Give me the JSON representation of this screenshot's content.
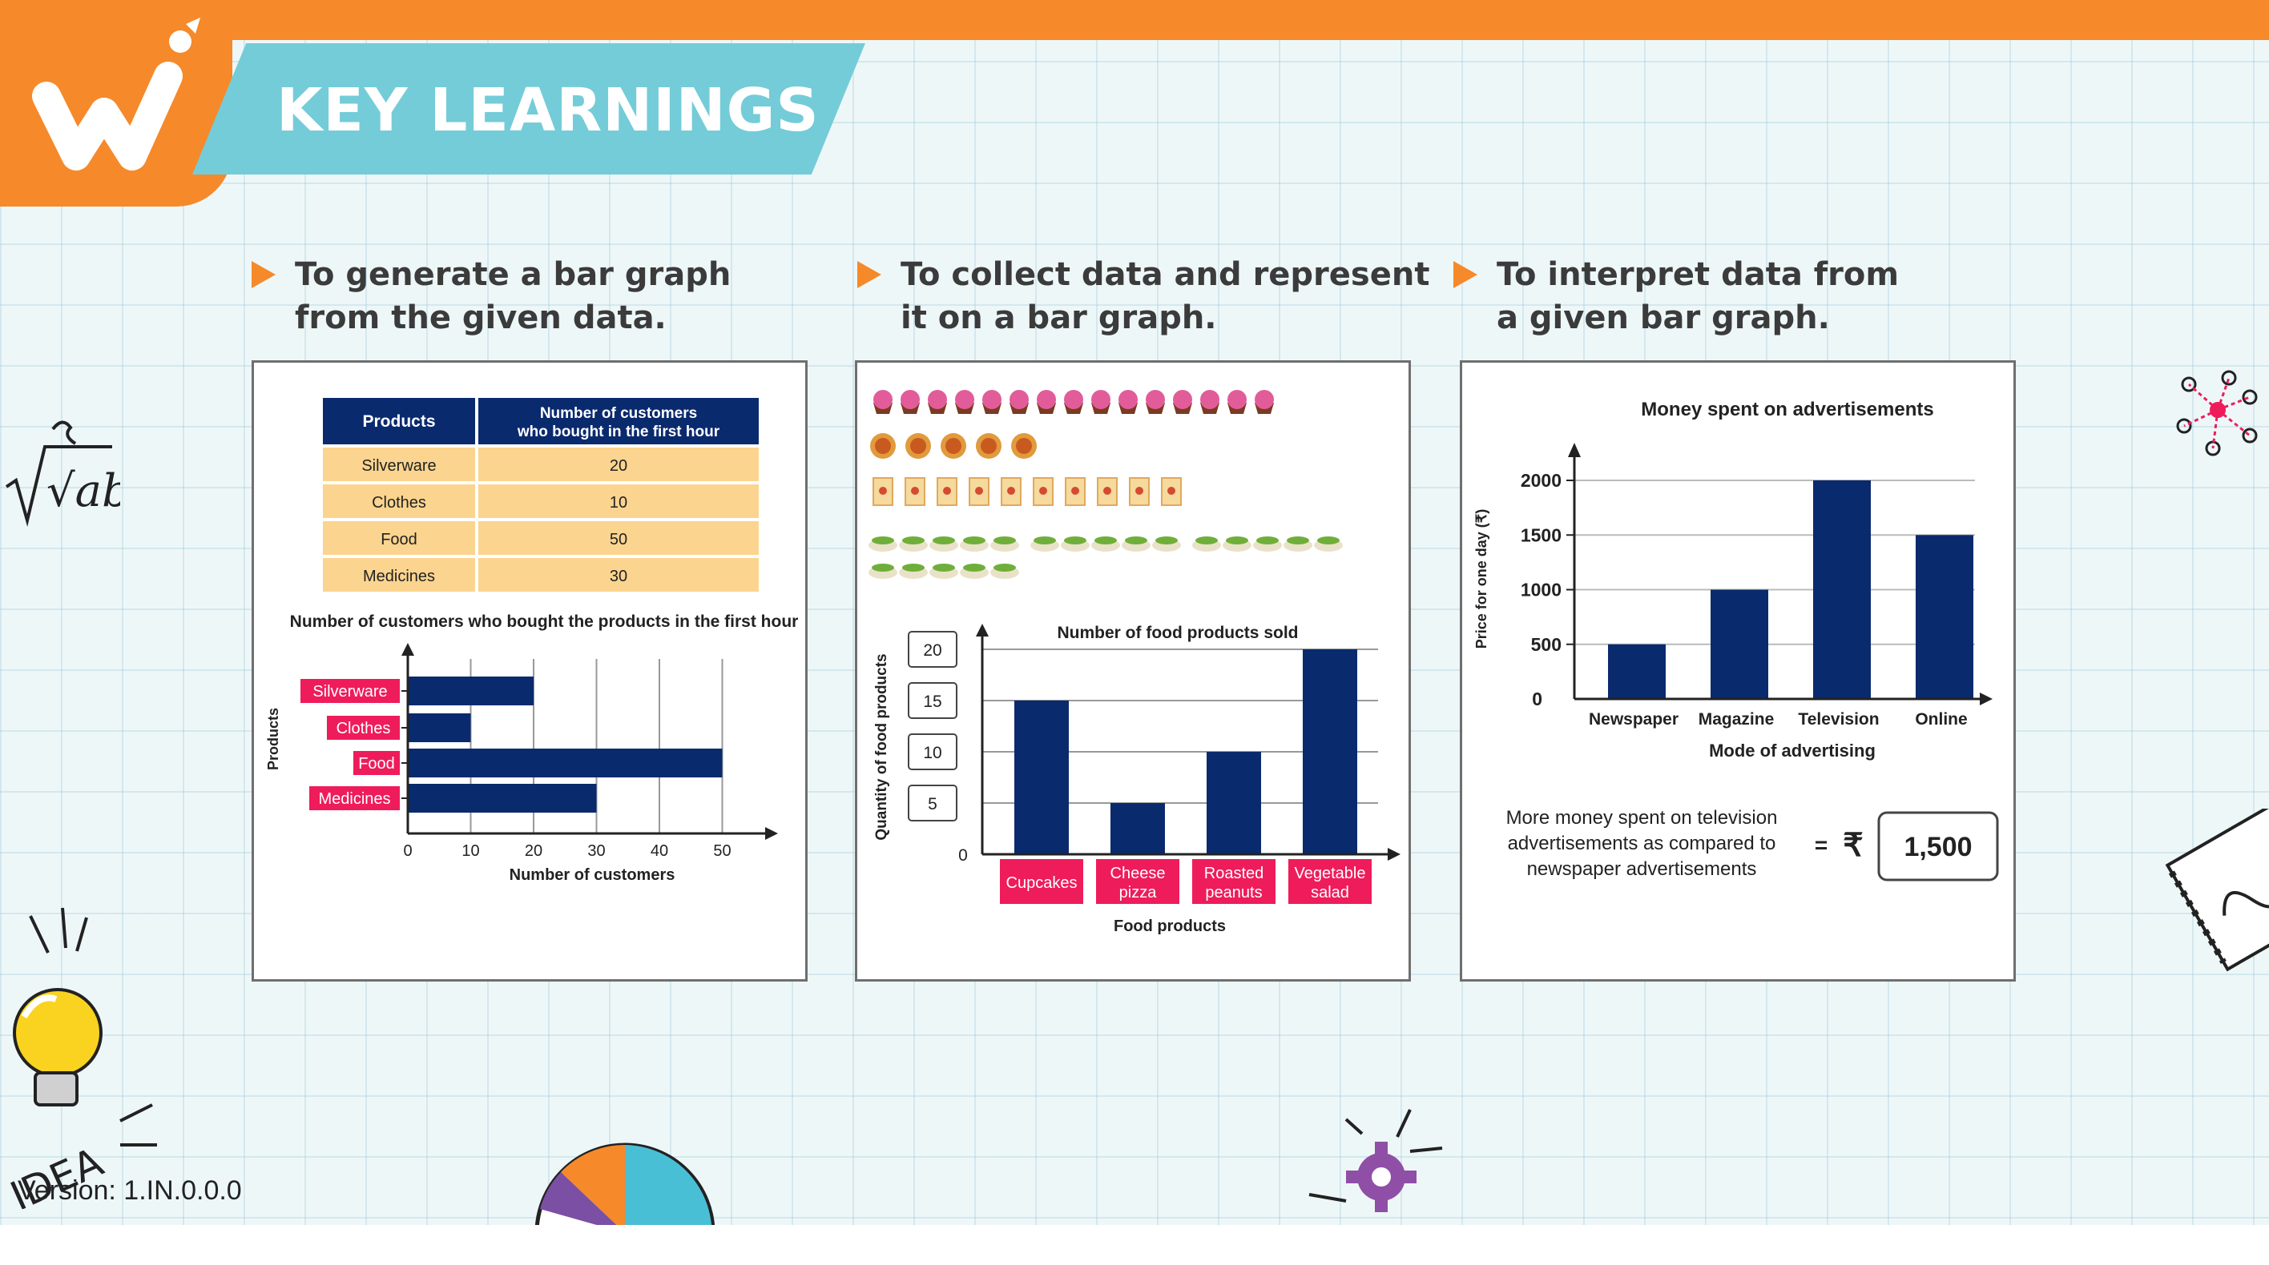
{
  "header": {
    "title": "KEY LEARNINGS",
    "colors": {
      "orange": "#f6892a",
      "teal": "#74ccd8",
      "navy": "#0a2a6e",
      "red": "#ee1c5b",
      "peach": "#fbd48f"
    }
  },
  "objectives": [
    {
      "lines": [
        "To generate a bar graph",
        "from the given data."
      ]
    },
    {
      "lines": [
        "To collect data and represent",
        "it on a bar graph."
      ]
    },
    {
      "lines": [
        "To interpret data from",
        "a given bar graph."
      ]
    }
  ],
  "panel1": {
    "table": {
      "headers": [
        "Products",
        "Number of customers",
        "who bought in the first hour"
      ],
      "rows": [
        {
          "product": "Silverware",
          "count": "20"
        },
        {
          "product": "Clothes",
          "count": "10"
        },
        {
          "product": "Food",
          "count": "50"
        },
        {
          "product": "Medicines",
          "count": "30"
        }
      ]
    },
    "chart_data": {
      "type": "bar",
      "orientation": "horizontal",
      "title": "Number of customers who bought the products in the first hour",
      "xlabel": "Number of customers",
      "ylabel": "Products",
      "categories": [
        "Silverware",
        "Clothes",
        "Food",
        "Medicines"
      ],
      "values": [
        20,
        10,
        50,
        30
      ],
      "xlim": [
        0,
        50
      ],
      "xticks": [
        "0",
        "10",
        "20",
        "30",
        "40",
        "50"
      ],
      "grid": true
    }
  },
  "panel2": {
    "pictograph": [
      {
        "item": "cupcake",
        "count": 15
      },
      {
        "item": "cheese-pizza",
        "count": 5
      },
      {
        "item": "roasted-peanuts",
        "count": 10
      },
      {
        "item": "vegetable-salad",
        "count": 20
      }
    ],
    "chart_data": {
      "type": "bar",
      "title": "Number of food products sold",
      "xlabel": "Food products",
      "ylabel": "Quantity of food products",
      "categories": [
        [
          "Cupcakes"
        ],
        [
          "Cheese",
          "pizza"
        ],
        [
          "Roasted",
          "peanuts"
        ],
        [
          "Vegetable",
          "salad"
        ]
      ],
      "values": [
        15,
        5,
        10,
        20
      ],
      "ylim": [
        0,
        20
      ],
      "yticks": [
        "0",
        "5",
        "10",
        "15",
        "20"
      ],
      "grid": true
    }
  },
  "panel3": {
    "chart_data": {
      "type": "bar",
      "title": "Money spent on advertisements",
      "xlabel": "Mode of advertising",
      "ylabel": "Price for one day (₹)",
      "categories": [
        "Newspaper",
        "Magazine",
        "Television",
        "Online"
      ],
      "values": [
        500,
        1000,
        2000,
        1500
      ],
      "ylim": [
        0,
        2000
      ],
      "yticks": [
        "0",
        "500",
        "1000",
        "1500",
        "2000"
      ],
      "grid": true
    },
    "question_lines": [
      "More money spent on television",
      "advertisements as compared to",
      "newspaper advertisements"
    ],
    "equals": "=",
    "currency": "₹",
    "answer": "1,500"
  },
  "footer": {
    "version": "Version: 1.IN.0.0.0"
  },
  "decorations": {
    "sqrt_text": "√ab",
    "idea_text": "IDEA"
  }
}
